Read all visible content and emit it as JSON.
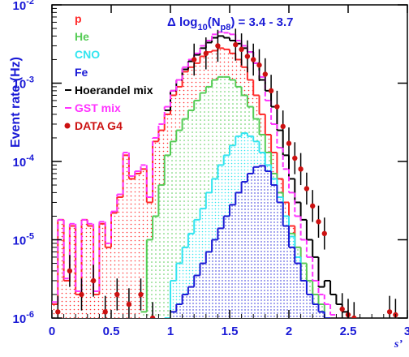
{
  "chart_data": {
    "type": "histogram",
    "title": "",
    "selection_label": {
      "prefix": "Δ log",
      "sub1": "10",
      "mid": "(N",
      "sub2": "p8",
      "suffix": ") = 3.4 - 3.7"
    },
    "xlabel": "s’",
    "ylabel": "Event rate (Hz)",
    "xlim": [
      0,
      3
    ],
    "ylim": [
      1e-06,
      0.01
    ],
    "yscale": "log",
    "xticks": [
      "0",
      "0.5",
      "1",
      "1.5",
      "2",
      "2.5",
      "3"
    ],
    "yticks": [
      {
        "mant": "10",
        "exp": "-6",
        "value": 1e-06
      },
      {
        "mant": "10",
        "exp": "-5",
        "value": 1e-05
      },
      {
        "mant": "10",
        "exp": "-4",
        "value": 0.0001
      },
      {
        "mant": "10",
        "exp": "-3",
        "value": 0.001
      },
      {
        "mant": "10",
        "exp": "-2",
        "value": 0.01
      }
    ],
    "legend": {
      "placement": "top-left",
      "entries": [
        {
          "label": "p",
          "color": "#ff2a2a",
          "marker": "none"
        },
        {
          "label": "He",
          "color": "#55cc55",
          "marker": "none"
        },
        {
          "label": "CNO",
          "color": "#33e5f0",
          "marker": "none"
        },
        {
          "label": "Fe",
          "color": "#1a1ad6",
          "marker": "none"
        },
        {
          "label": "Hoerandel mix",
          "color": "#000000",
          "marker": "line"
        },
        {
          "label": "GST mix",
          "color": "#ff33ff",
          "marker": "dash"
        },
        {
          "label": "DATA G4",
          "color": "#cc1111",
          "marker": "dot"
        }
      ]
    },
    "series": [
      {
        "name": "p",
        "style": "hist-fill-dots",
        "color": "#ff2a2a",
        "x": [
          0.025,
          0.075,
          0.125,
          0.175,
          0.225,
          0.275,
          0.325,
          0.375,
          0.425,
          0.475,
          0.525,
          0.575,
          0.625,
          0.675,
          0.725,
          0.775,
          0.825,
          0.875,
          0.925,
          0.975,
          1.025,
          1.075,
          1.125,
          1.175,
          1.225,
          1.275,
          1.325,
          1.375,
          1.425,
          1.475,
          1.525,
          1.575,
          1.625,
          1.675,
          1.725,
          1.775,
          1.825,
          1.875,
          1.925,
          1.975,
          2.025,
          2.075,
          2.125,
          2.175,
          2.225,
          2.275,
          2.325
        ],
        "values": [
          1.5e-06,
          1.8e-05,
          3e-06,
          1.5e-05,
          2e-06,
          1.8e-05,
          1.5e-05,
          2e-06,
          1.6e-05,
          8e-06,
          2.2e-05,
          3.5e-05,
          0.00012,
          6e-05,
          7e-05,
          8e-05,
          3e-05,
          0.00018,
          0.00025,
          0.0004,
          0.0007,
          0.0009,
          0.0014,
          0.0016,
          0.0018,
          0.0022,
          0.0025,
          0.0026,
          0.0028,
          0.0027,
          0.0024,
          0.002,
          0.0016,
          0.0011,
          0.0007,
          0.0004,
          0.00022,
          0.00013,
          6e-05,
          3e-05,
          1.5e-05,
          8e-06,
          4e-06,
          2.5e-06,
          1.5e-06,
          1e-06,
          1e-06
        ]
      },
      {
        "name": "He",
        "style": "hist-fill-dots",
        "color": "#55cc55",
        "x": [
          0.775,
          0.825,
          0.875,
          0.925,
          0.975,
          1.025,
          1.075,
          1.125,
          1.175,
          1.225,
          1.275,
          1.325,
          1.375,
          1.425,
          1.475,
          1.525,
          1.575,
          1.625,
          1.675,
          1.725,
          1.775,
          1.825,
          1.875,
          1.925,
          1.975,
          2.025,
          2.075,
          2.125,
          2.175,
          2.225,
          2.275,
          2.325
        ],
        "values": [
          1.2e-06,
          1e-05,
          2e-05,
          5e-05,
          0.00012,
          0.00018,
          0.00025,
          0.00035,
          0.00045,
          0.0006,
          0.00075,
          0.0009,
          0.0011,
          0.0012,
          0.0012,
          0.0011,
          0.0009,
          0.0007,
          0.0005,
          0.00035,
          0.00022,
          0.00013,
          7e-05,
          4e-05,
          2e-05,
          1.2e-05,
          8e-06,
          5e-06,
          3e-06,
          2e-06,
          1.5e-06,
          1e-06
        ]
      },
      {
        "name": "CNO",
        "style": "hist-fill-dots",
        "color": "#33e5f0",
        "x": [
          0.975,
          1.025,
          1.075,
          1.125,
          1.175,
          1.225,
          1.275,
          1.325,
          1.375,
          1.425,
          1.475,
          1.525,
          1.575,
          1.625,
          1.675,
          1.725,
          1.775,
          1.825,
          1.875,
          1.925,
          1.975,
          2.025,
          2.075,
          2.125,
          2.175,
          2.225,
          2.275,
          2.325
        ],
        "values": [
          1e-06,
          3e-06,
          5e-06,
          8e-06,
          1.2e-05,
          1.8e-05,
          2.5e-05,
          4e-05,
          6e-05,
          9e-05,
          0.00012,
          0.00016,
          0.00021,
          0.00023,
          0.00021,
          0.00018,
          0.00013,
          9e-05,
          6e-05,
          3.5e-05,
          2e-05,
          1.1e-05,
          6e-06,
          3e-06,
          2e-06,
          1.5e-06,
          1.2e-06,
          1e-06
        ]
      },
      {
        "name": "Fe",
        "style": "hist-fill-dots",
        "color": "#1a1ad6",
        "x": [
          1.025,
          1.075,
          1.125,
          1.175,
          1.225,
          1.275,
          1.325,
          1.375,
          1.425,
          1.475,
          1.525,
          1.575,
          1.625,
          1.675,
          1.725,
          1.775,
          1.825,
          1.875,
          1.925,
          1.975,
          2.025,
          2.075,
          2.125,
          2.175,
          2.225,
          2.275,
          2.325
        ],
        "values": [
          1.2e-06,
          1.5e-06,
          2e-06,
          2.5e-06,
          3.5e-06,
          5e-06,
          7e-06,
          1e-05,
          1.4e-05,
          2e-05,
          2.8e-05,
          4e-05,
          5.5e-05,
          7e-05,
          8.5e-05,
          8.8e-05,
          7.5e-05,
          5e-05,
          3e-05,
          1.5e-05,
          8e-06,
          5e-06,
          3e-06,
          2e-06,
          1.5e-06,
          1.2e-06,
          1e-06
        ]
      },
      {
        "name": "Hoerandel mix",
        "style": "hist-line",
        "color": "#000000",
        "x": [
          0.975,
          1.025,
          1.075,
          1.125,
          1.175,
          1.225,
          1.275,
          1.325,
          1.375,
          1.425,
          1.475,
          1.525,
          1.575,
          1.625,
          1.675,
          1.725,
          1.775,
          1.825,
          1.875,
          1.925,
          1.975,
          2.025,
          2.075,
          2.125,
          2.175,
          2.225,
          2.275,
          2.325,
          2.375,
          2.425,
          2.475
        ],
        "values": [
          0.00045,
          0.0008,
          0.0011,
          0.0015,
          0.0019,
          0.0023,
          0.0028,
          0.0033,
          0.0038,
          0.004,
          0.0038,
          0.0035,
          0.0032,
          0.0028,
          0.0025,
          0.0018,
          0.0011,
          0.0008,
          0.0005,
          0.00025,
          0.00012,
          6e-05,
          3e-05,
          1.8e-05,
          1e-05,
          6e-06,
          2.5e-06,
          3e-06,
          2e-06,
          1.5e-06,
          1.2e-06
        ]
      },
      {
        "name": "GST mix",
        "style": "hist-dash",
        "color": "#ff33ff",
        "x": [
          0.025,
          0.075,
          0.125,
          0.175,
          0.225,
          0.275,
          0.325,
          0.375,
          0.425,
          0.475,
          0.525,
          0.575,
          0.625,
          0.675,
          0.725,
          0.775,
          0.825,
          0.875,
          0.925,
          0.975,
          1.025,
          1.075,
          1.125,
          1.175,
          1.225,
          1.275,
          1.325,
          1.375,
          1.425,
          1.475,
          1.525,
          1.575,
          1.625,
          1.675,
          1.725,
          1.775,
          1.825,
          1.875,
          1.925,
          1.975,
          2.025,
          2.075,
          2.125,
          2.175,
          2.225,
          2.275,
          2.325,
          2.375
        ],
        "values": [
          1.6e-06,
          1.8e-05,
          3.2e-06,
          1.6e-05,
          2.2e-06,
          1.8e-05,
          1.6e-05,
          2.2e-06,
          1.7e-05,
          9e-06,
          2.3e-05,
          3.8e-05,
          0.00013,
          6.5e-05,
          7.5e-05,
          9e-05,
          3.5e-05,
          0.0002,
          0.0003,
          0.0005,
          0.0008,
          0.0011,
          0.0016,
          0.002,
          0.0024,
          0.003,
          0.0035,
          0.0042,
          0.0045,
          0.0044,
          0.0042,
          0.0035,
          0.003,
          0.0025,
          0.0018,
          0.0012,
          0.0006,
          0.0003,
          0.00015,
          8e-05,
          4e-05,
          2e-05,
          1e-05,
          6e-06,
          3e-06,
          2e-06,
          1.5e-06,
          1.1e-06
        ]
      },
      {
        "name": "DATA G4",
        "style": "points-errorbars",
        "color": "#cc1111",
        "x": [
          0.05,
          0.15,
          0.25,
          0.35,
          0.45,
          0.55,
          0.65,
          0.75,
          0.85,
          1.2,
          1.3,
          1.4,
          1.55,
          1.6,
          1.65,
          1.7,
          1.75,
          1.8,
          1.85,
          1.9,
          1.95,
          2.0,
          2.05,
          2.1,
          2.15,
          2.2,
          2.25,
          2.3,
          2.45,
          2.5,
          2.55,
          2.85,
          2.9
        ],
        "values": [
          1.2e-06,
          4e-06,
          2e-06,
          3e-06,
          1.2e-06,
          2e-06,
          1.5e-06,
          2e-06,
          1e-06,
          0.002,
          0.0024,
          0.003,
          0.0031,
          0.0027,
          0.0022,
          0.002,
          0.0017,
          0.0013,
          0.0008,
          0.0005,
          0.00028,
          0.00017,
          0.00011,
          8e-05,
          4.5e-05,
          2.7e-05,
          1.7e-05,
          1.2e-05,
          1.3e-06,
          1.1e-06,
          1e-06,
          1.2e-06,
          1.1e-06
        ]
      }
    ]
  }
}
